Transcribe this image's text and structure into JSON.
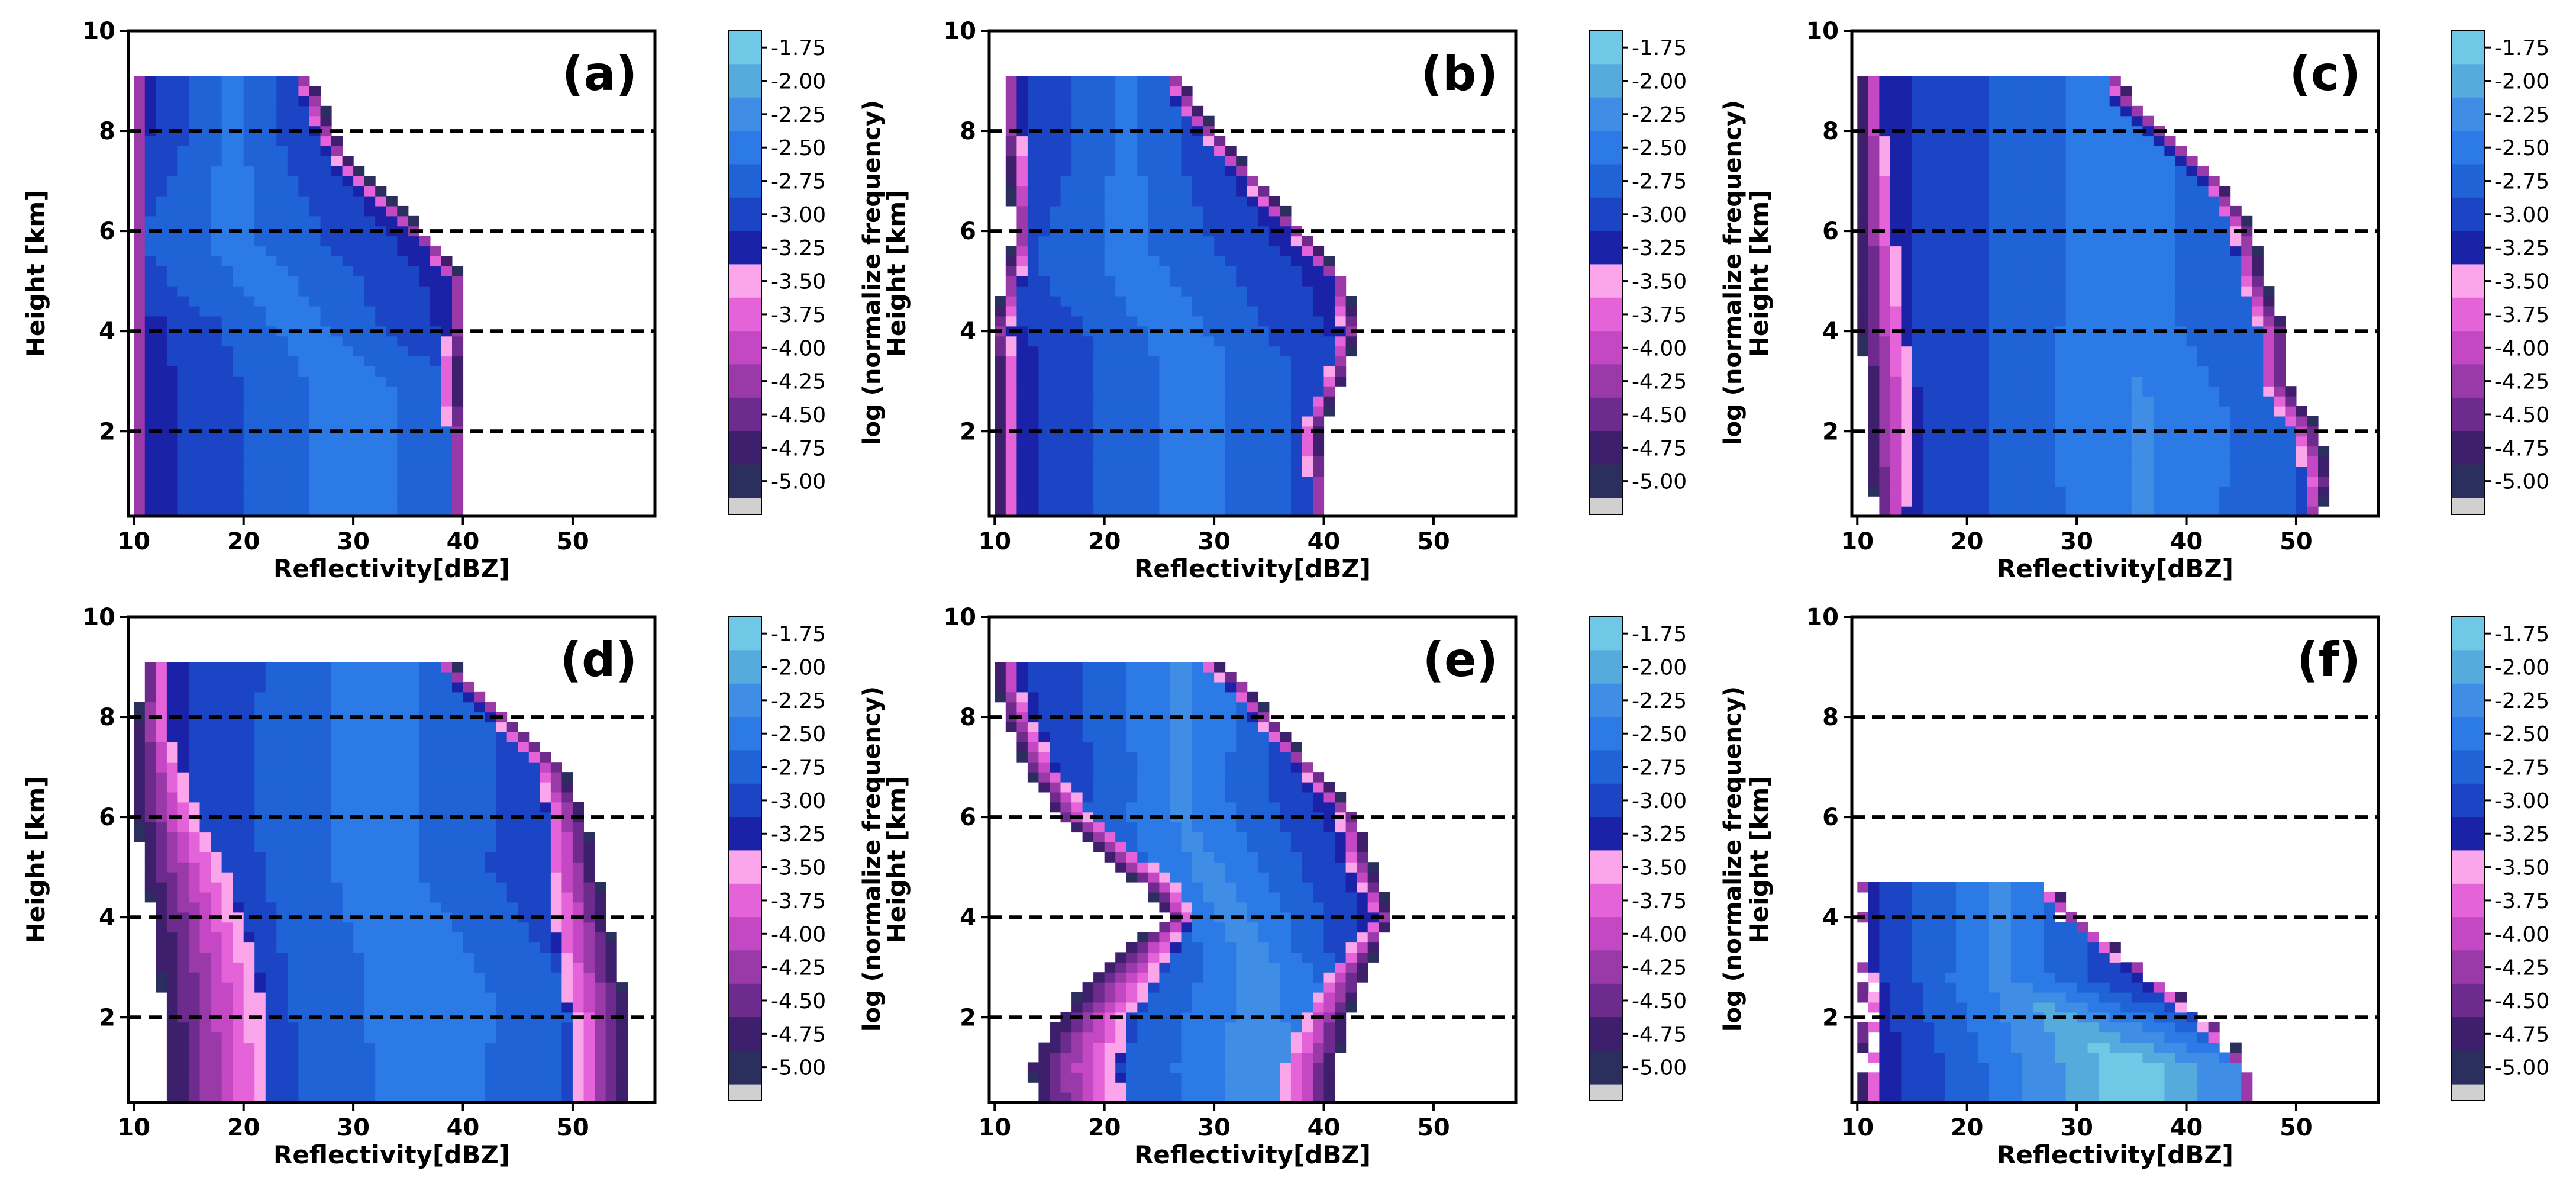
{
  "chart_data": {
    "type": "heatmap",
    "description_free": true,
    "common": {
      "xlabel": "Reflectivity[dBZ]",
      "ylabel": "Height [km]",
      "xlim": [
        9.5,
        57.5
      ],
      "ylim": [
        0.3,
        10
      ],
      "xticks": [
        10,
        20,
        30,
        40,
        50
      ],
      "yticks": [
        2,
        4,
        6,
        8,
        10
      ],
      "reference_lines_km": [
        2,
        4,
        6,
        8
      ],
      "reference_line_style": "dashed",
      "colorbar": {
        "label": "log (normalize frequency)",
        "ticks": [
          "-1.75",
          "-2.00",
          "-2.25",
          "-2.50",
          "-2.75",
          "-3.00",
          "-3.25",
          "-3.50",
          "-3.75",
          "-4.00",
          "-4.25",
          "-4.50",
          "-4.75",
          "-5.00"
        ],
        "levels": [
          -1.75,
          -2.0,
          -2.25,
          -2.5,
          -2.75,
          -3.0,
          -3.25,
          -3.5,
          -3.75,
          -4.0,
          -4.25,
          -4.5,
          -4.75,
          -5.0
        ],
        "colors": [
          "#6fc8e6",
          "#55acdc",
          "#3f8de4",
          "#2b7ae6",
          "#1f63d6",
          "#1b45c4",
          "#1a22a8",
          "#fba6ea",
          "#e463d8",
          "#c447c4",
          "#9a3aa8",
          "#6e2b8e",
          "#3d1f6b",
          "#2a2f5e"
        ],
        "under_color": "#d0d0d0"
      }
    },
    "panels": [
      {
        "label": "(a)",
        "profile": [
          [
            0.4,
            10,
            40,
            10.0
          ],
          [
            1.0,
            10,
            40,
            10.0
          ],
          [
            2.0,
            10,
            40,
            10.0
          ],
          [
            3.0,
            10,
            39.5,
            10.0
          ],
          [
            4.0,
            10,
            40,
            10.0
          ],
          [
            5.0,
            10,
            40,
            10.0
          ],
          [
            5.6,
            10,
            38,
            10.0
          ],
          [
            6.5,
            10,
            34,
            10.0
          ],
          [
            7.3,
            10,
            30,
            10.0
          ],
          [
            8.0,
            10,
            28,
            10.0
          ],
          [
            8.6,
            10,
            27,
            10.0
          ],
          [
            9.1,
            10,
            26,
            10.0
          ]
        ],
        "core": [
          [
            2.8,
            30,
            -2.6
          ],
          [
            5.8,
            19,
            -2.65
          ]
        ]
      },
      {
        "label": "(b)",
        "profile": [
          [
            0.4,
            10.5,
            40,
            10.5
          ],
          [
            1.0,
            10.5,
            40,
            10.5
          ],
          [
            2.0,
            10.5,
            39.5,
            11.0
          ],
          [
            3.0,
            10.5,
            41.5,
            11.0
          ],
          [
            4.0,
            10.0,
            43,
            10.5
          ],
          [
            5.0,
            11.0,
            42,
            12.0
          ],
          [
            6.0,
            12.0,
            38,
            13.0
          ],
          [
            7.0,
            11.5,
            34,
            12.5
          ],
          [
            8.0,
            11.0,
            30,
            11.5
          ],
          [
            8.6,
            11.0,
            28,
            11.5
          ],
          [
            9.1,
            11.0,
            27,
            11.5
          ]
        ],
        "core": [
          [
            3.5,
            28,
            -2.6
          ],
          [
            5.5,
            22,
            -2.65
          ]
        ]
      },
      {
        "label": "(c)",
        "profile": [
          [
            0.4,
            12.0,
            52,
            14.5
          ],
          [
            1.0,
            11.5,
            53,
            15.0
          ],
          [
            2.0,
            11.0,
            52,
            15.0
          ],
          [
            3.0,
            11.0,
            49,
            15.0
          ],
          [
            4.0,
            10.5,
            49,
            14.5
          ],
          [
            5.0,
            10.5,
            47,
            14.0
          ],
          [
            6.0,
            10.5,
            46,
            13.5
          ],
          [
            7.0,
            10.5,
            43,
            13.0
          ],
          [
            8.0,
            10.5,
            38,
            12.5
          ],
          [
            8.6,
            10.5,
            35,
            12.5
          ],
          [
            9.1,
            10.5,
            34,
            12.5
          ]
        ],
        "core": [
          [
            2.5,
            36,
            -2.45
          ],
          [
            4.2,
            34,
            -2.55
          ]
        ]
      },
      {
        "label": "(d)",
        "profile": [
          [
            0.4,
            13.5,
            55,
            22.5
          ],
          [
            1.0,
            13.5,
            55,
            22.5
          ],
          [
            2.0,
            13.0,
            55,
            22.0
          ],
          [
            3.0,
            12.5,
            54,
            21.5
          ],
          [
            4.0,
            12.0,
            53,
            20.0
          ],
          [
            5.0,
            11.0,
            52,
            18.5
          ],
          [
            6.0,
            10.5,
            51,
            16.0
          ],
          [
            7.0,
            10.5,
            49,
            14.5
          ],
          [
            8.0,
            10.5,
            44,
            13.0
          ],
          [
            8.6,
            11.0,
            41,
            13.0
          ],
          [
            9.1,
            11.0,
            39,
            13.0
          ]
        ],
        "core": [
          [
            2.5,
            37,
            -2.55
          ],
          [
            5.0,
            32,
            -2.6
          ]
        ]
      },
      {
        "label": "(e)",
        "profile": [
          [
            0.4,
            14.0,
            41,
            22.0
          ],
          [
            1.0,
            13.5,
            41,
            21.5
          ],
          [
            2.0,
            16.0,
            42,
            22.5
          ],
          [
            3.0,
            20.0,
            44,
            25.5
          ],
          [
            4.0,
            26.0,
            46,
            28.0
          ],
          [
            4.6,
            24.0,
            45,
            27.0
          ],
          [
            5.2,
            20.0,
            44,
            23.5
          ],
          [
            6.0,
            16.0,
            43,
            19.0
          ],
          [
            7.0,
            13.0,
            39,
            15.5
          ],
          [
            8.0,
            11.0,
            35,
            13.5
          ],
          [
            8.6,
            10.5,
            33,
            12.5
          ],
          [
            9.1,
            10.5,
            30,
            12.0
          ]
        ],
        "core": [
          [
            3.0,
            34,
            -2.35
          ],
          [
            6.0,
            27,
            -2.45
          ]
        ]
      },
      {
        "label": "(f)",
        "profile": [
          [
            0.4,
            10.5,
            46,
            12.0
          ],
          [
            1.0,
            10.5,
            46,
            12.0
          ],
          [
            2.0,
            10.0,
            42,
            12.0
          ],
          [
            3.0,
            10.0,
            36,
            11.5
          ],
          [
            4.0,
            10.0,
            30,
            11.0
          ],
          [
            4.6,
            10.0,
            28,
            11.0
          ]
        ],
        "core": [
          [
            1.0,
            35,
            -1.8
          ],
          [
            2.8,
            23,
            -2.4
          ]
        ]
      }
    ]
  }
}
